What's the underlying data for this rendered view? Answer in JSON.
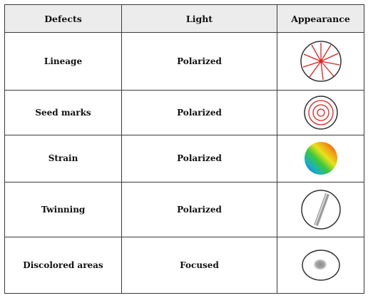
{
  "table": {
    "headers": [
      "Defects",
      "Light",
      "Appearance"
    ],
    "rows": [
      {
        "defect": "Lineage",
        "light": "Polarized",
        "appearance_icon": "radial-lines-icon"
      },
      {
        "defect": "Seed marks",
        "light": "Polarized",
        "appearance_icon": "concentric-rings-icon"
      },
      {
        "defect": "Strain",
        "light": "Polarized",
        "appearance_icon": "rainbow-disc-icon"
      },
      {
        "defect": "Twinning",
        "light": "Polarized",
        "appearance_icon": "diagonal-band-icon"
      },
      {
        "defect": "Discolored areas",
        "light": "Focused",
        "appearance_icon": "gray-blotch-icon"
      }
    ]
  },
  "colors": {
    "pattern_red": "#e0201a",
    "outline": "#333333",
    "header_bg": "#ececec"
  }
}
